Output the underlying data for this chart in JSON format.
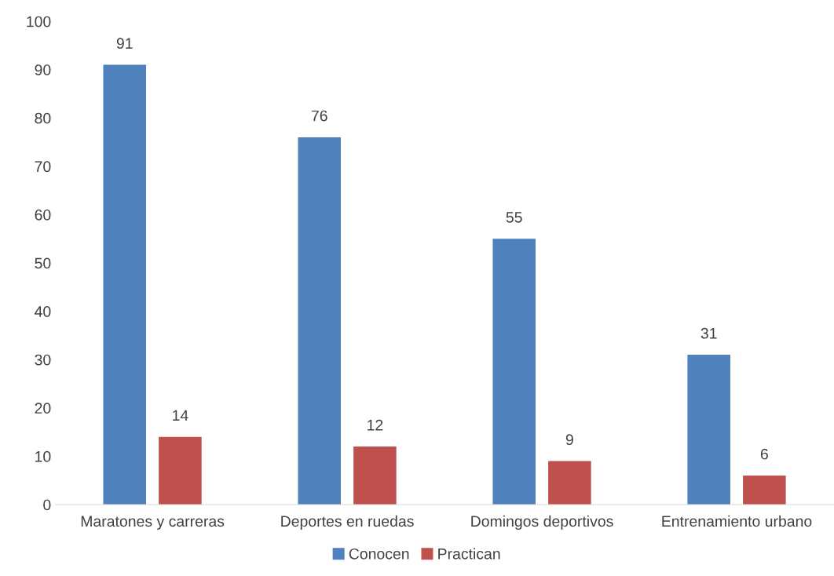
{
  "chart_data": {
    "type": "bar",
    "categories": [
      "Maratones y carreras",
      "Deportes en ruedas",
      "Domingos deportivos",
      "Entrenamiento urbano"
    ],
    "series": [
      {
        "name": "Conocen",
        "color": "#4f81bd",
        "values": [
          91,
          76,
          55,
          31
        ]
      },
      {
        "name": "Practican",
        "color": "#c0504d",
        "values": [
          14,
          12,
          9,
          6
        ]
      }
    ],
    "ylim": [
      0,
      100
    ],
    "yticks": [
      0,
      10,
      20,
      30,
      40,
      50,
      60,
      70,
      80,
      90,
      100
    ],
    "data_labels": true,
    "grid": false,
    "legend": "bottom"
  }
}
